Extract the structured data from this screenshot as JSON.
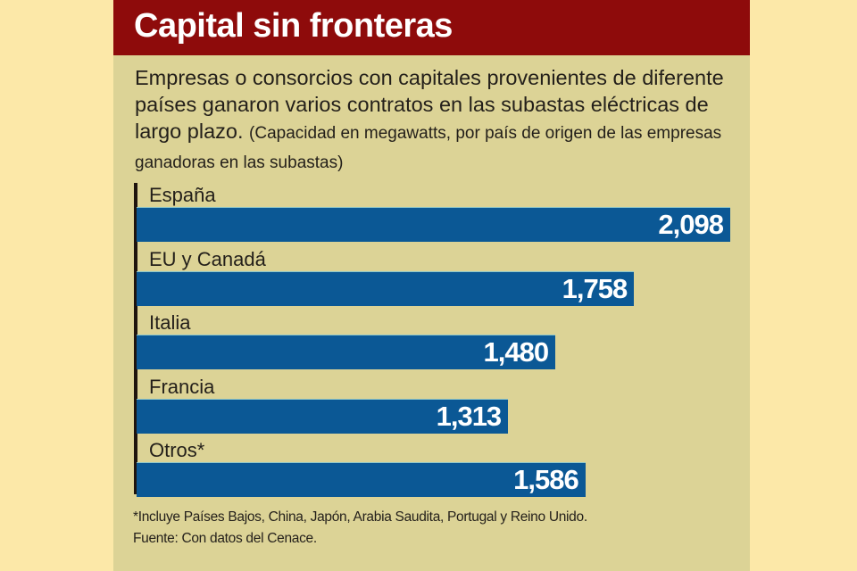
{
  "title": "Capital sin fronteras",
  "subtitle_main": "Empresas o consorcios con capitales provenientes de diferente países ganaron varios contratos en las subastas eléctricas de largo plazo.",
  "subtitle_note": "(Capacidad en megawatts, por país de origen de las empresas ganadoras en las subastas)",
  "footnote": "*Incluye Países Bajos, China, Japón, Arabia Saudita, Portugal y Reino Unido.",
  "source": "Fuente: Con datos del Cenace.",
  "colors": {
    "header": "#8e0b0b",
    "bar": "#0b5895",
    "panel": "#dcd396"
  },
  "chart_data": {
    "type": "bar",
    "orientation": "horizontal",
    "title": "Capital sin fronteras",
    "xlabel": "Capacidad en megawatts",
    "ylabel": "",
    "categories": [
      "España",
      "EU y Canadá",
      "Italia",
      "Francia",
      "Otros*"
    ],
    "values": [
      2098,
      1758,
      1480,
      1313,
      1586
    ],
    "value_labels": [
      "2,098",
      "1,758",
      "1,480",
      "1,313",
      "1,586"
    ],
    "xlim": [
      0,
      2098
    ],
    "grid": false
  }
}
